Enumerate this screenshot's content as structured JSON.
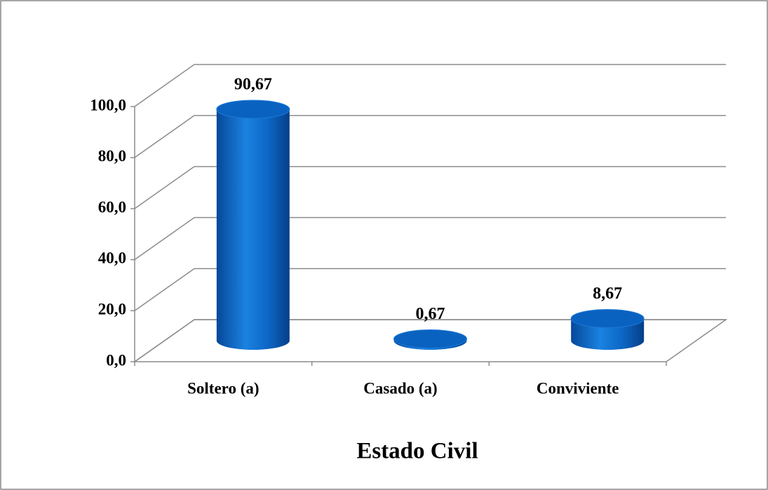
{
  "chart_data": {
    "type": "bar3d",
    "x_label": "Estado Civil",
    "categories": [
      "Soltero (a)",
      "Casado (a)",
      "Conviviente"
    ],
    "values": [
      90.67,
      0.67,
      8.67
    ],
    "value_labels": [
      "90,67",
      "0,67",
      "8,67"
    ],
    "color": "#0a62c0",
    "ylim": [
      0,
      100
    ],
    "yticks": [
      {
        "value": 0,
        "label": "0,0"
      },
      {
        "value": 20,
        "label": "20,0"
      },
      {
        "value": 40,
        "label": "40,0"
      },
      {
        "value": 60,
        "label": "60,0"
      },
      {
        "value": 80,
        "label": "80,0"
      },
      {
        "value": 100,
        "label": "100,0"
      }
    ],
    "grid": true
  }
}
